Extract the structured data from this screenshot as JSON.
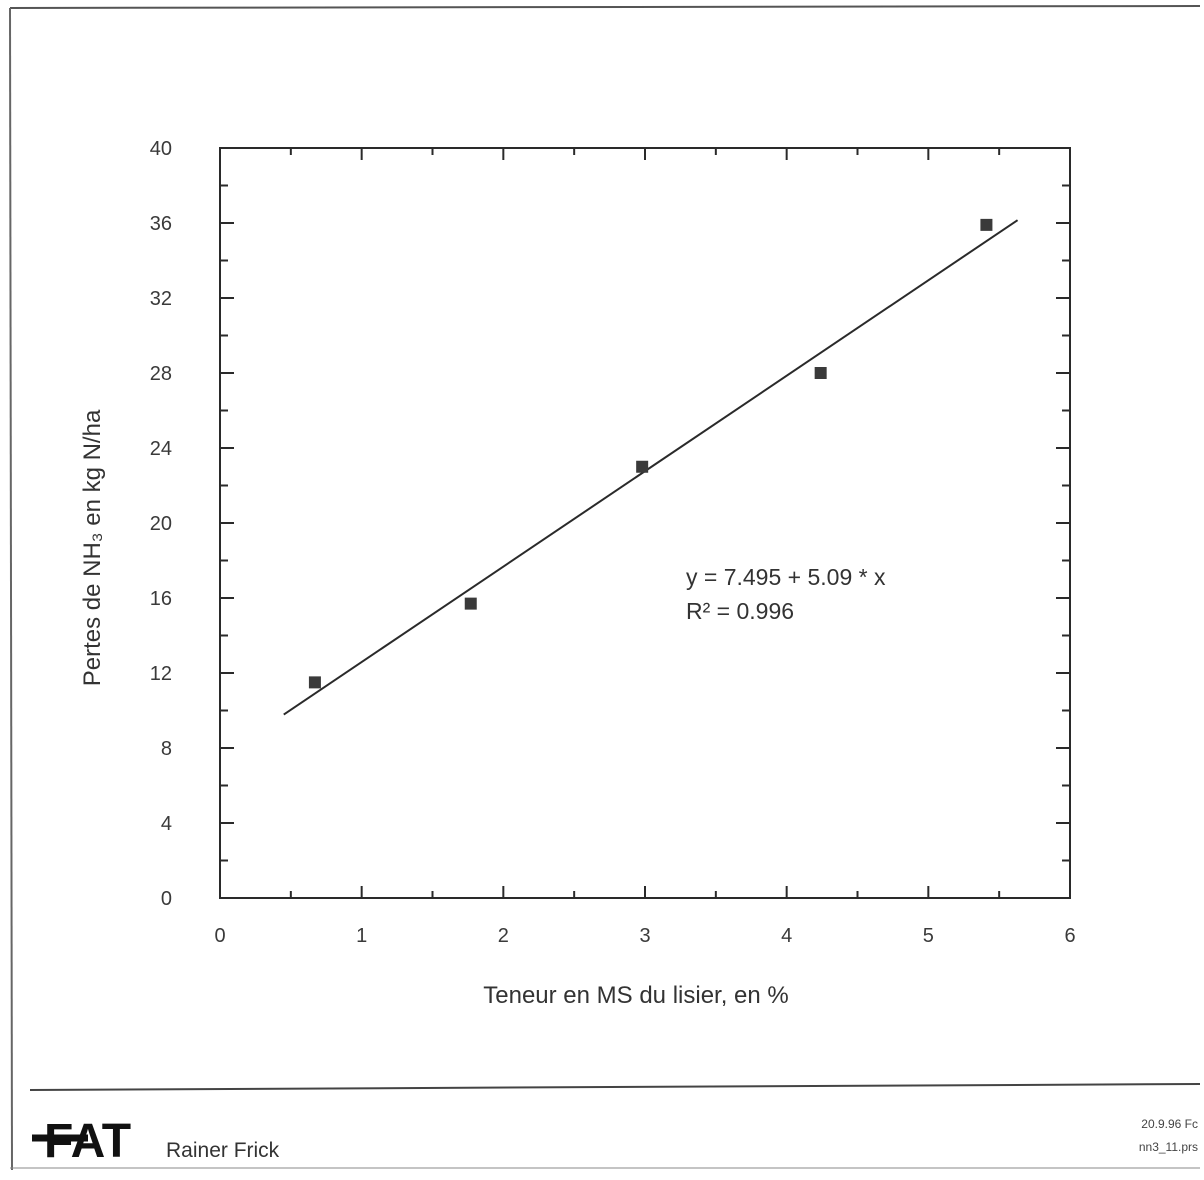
{
  "chart_data": {
    "type": "scatter",
    "title": "",
    "xlabel": "Teneur en MS du lisier, en %",
    "ylabel": "Pertes de NH₃ en kg N/ha",
    "xlim": [
      0,
      6
    ],
    "ylim": [
      0,
      40
    ],
    "x_ticks": [
      0,
      1,
      2,
      3,
      4,
      5,
      6
    ],
    "y_ticks": [
      0,
      4,
      8,
      12,
      16,
      20,
      24,
      28,
      32,
      36,
      40
    ],
    "grid": false,
    "legend": "none",
    "series": [
      {
        "x": [
          0.67,
          1.77,
          2.98,
          4.24,
          5.41
        ],
        "y": [
          11.5,
          15.7,
          23.0,
          28.0,
          35.9
        ],
        "marker": "square"
      }
    ],
    "fit": {
      "intercept": 7.495,
      "slope": 5.09,
      "x_range": [
        0.45,
        5.63
      ]
    },
    "annotations": {
      "equation": "y = 7.495 + 5.09 * x",
      "r_squared": "R² = 0.996"
    }
  },
  "footer": {
    "logo_text": "FAT",
    "author": "Rainer Frick",
    "date": "20.9.96 Fc",
    "file": "nn3_11.prs"
  },
  "colors": {
    "ink": "#2a2a2a",
    "marker": "#3a3a3a"
  }
}
